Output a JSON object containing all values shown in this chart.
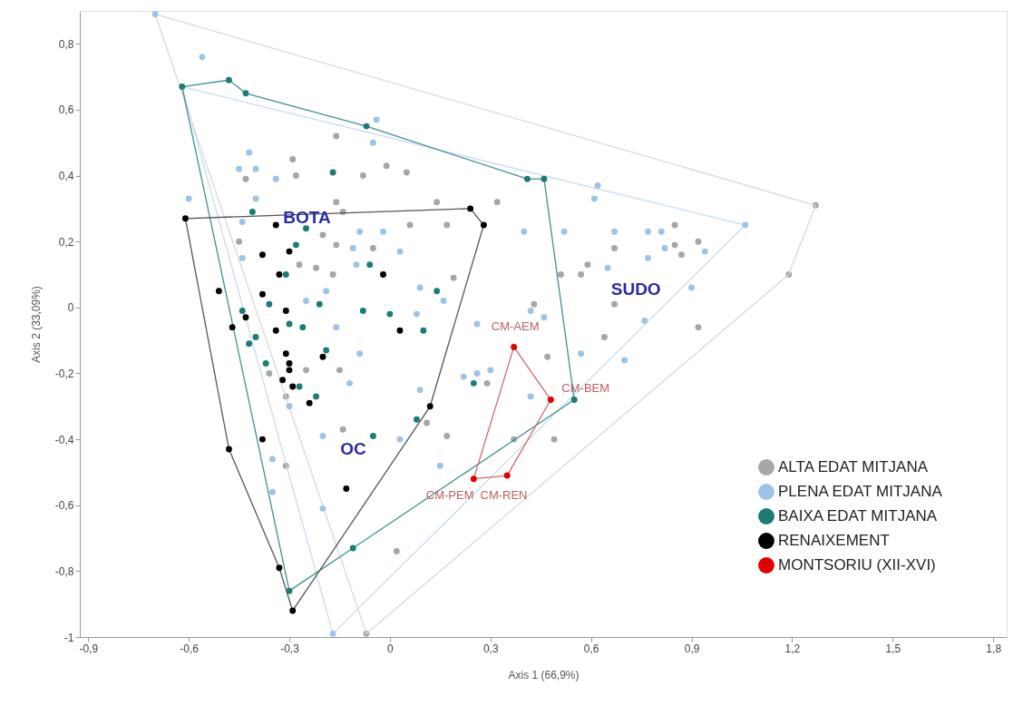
{
  "chart_data": {
    "type": "scatter",
    "xlabel": "Axis 1 (66,9%)",
    "ylabel": "Axis 2 (33,09%)",
    "xlim": [
      -0.925,
      1.84
    ],
    "ylim": [
      -1,
      0.9
    ],
    "xticks": [
      {
        "value": -0.9,
        "label": "-0,9"
      },
      {
        "value": -0.6,
        "label": "-0,6"
      },
      {
        "value": -0.3,
        "label": "-0,3"
      },
      0,
      {
        "value": 0.3,
        "label": "0,3"
      },
      {
        "value": 0.6,
        "label": "0,6"
      },
      {
        "value": 0.9,
        "label": "0,9"
      },
      {
        "value": 1.2,
        "label": "1,2"
      },
      {
        "value": 1.5,
        "label": "1,5"
      },
      {
        "value": 1.8,
        "label": "1,8"
      }
    ],
    "yticks": [
      {
        "value": 0.8,
        "label": "0,8"
      },
      {
        "value": 0.6,
        "label": "0,6"
      },
      {
        "value": 0.4,
        "label": "0,4"
      },
      {
        "value": 0.2,
        "label": "0,2"
      },
      0,
      {
        "value": -0.2,
        "label": "-0,2"
      },
      {
        "value": -0.4,
        "label": "-0,4"
      },
      {
        "value": -0.6,
        "label": "-0,6"
      },
      {
        "value": -0.8,
        "label": "-0,8"
      },
      -1
    ],
    "grid": false,
    "legend": "bottom right",
    "marker": "circle",
    "series": [
      {
        "type": "line",
        "marker": "none",
        "color": "#d9d9d9",
        "x": [
          -0.7,
          1.27
        ],
        "values": [
          0.89,
          0.31
        ]
      },
      {
        "type": "line",
        "marker": "none",
        "color": "#d9d9d9",
        "x": [
          1.19,
          1.27
        ],
        "values": [
          0.1,
          0.31
        ]
      },
      {
        "type": "line",
        "marker": "none",
        "color": "#d9d9d9",
        "x": [
          -0.07,
          1.19
        ],
        "values": [
          -0.99,
          0.1
        ]
      },
      {
        "type": "line",
        "marker": "none",
        "color": "#d9d9d9",
        "x": [
          -0.7,
          -0.07
        ],
        "values": [
          0.89,
          -0.99
        ]
      },
      {
        "type": "line",
        "marker": "none",
        "color": "#c9dcef",
        "x": [
          -0.62,
          1.06
        ],
        "values": [
          0.67,
          0.25
        ]
      },
      {
        "type": "line",
        "marker": "none",
        "color": "#c9dcef",
        "x": [
          -0.17,
          1.06
        ],
        "values": [
          -0.99,
          0.25
        ]
      },
      {
        "type": "line",
        "marker": "none",
        "color": "#c9dcef",
        "x": [
          -0.62,
          -0.17
        ],
        "values": [
          0.67,
          -0.99
        ]
      },
      {
        "type": "line",
        "marker": "none",
        "color": "#3f9090",
        "x": [
          -0.62,
          -0.48
        ],
        "values": [
          0.67,
          0.69
        ]
      },
      {
        "type": "line",
        "marker": "none",
        "color": "#3f9090",
        "x": [
          -0.48,
          -0.43
        ],
        "values": [
          0.69,
          0.65
        ]
      },
      {
        "type": "line",
        "marker": "none",
        "color": "#3f9090",
        "x": [
          -0.43,
          -0.07
        ],
        "values": [
          0.65,
          0.55
        ]
      },
      {
        "type": "line",
        "marker": "none",
        "color": "#3f9090",
        "x": [
          -0.07,
          0.41
        ],
        "values": [
          0.55,
          0.39
        ]
      },
      {
        "type": "line",
        "marker": "none",
        "color": "#3f9090",
        "x": [
          0.41,
          0.46
        ],
        "values": [
          0.39,
          0.39
        ]
      },
      {
        "type": "line",
        "marker": "none",
        "color": "#3f9090",
        "x": [
          0.46,
          0.55
        ],
        "values": [
          0.39,
          -0.28
        ]
      },
      {
        "type": "line",
        "marker": "none",
        "color": "#3f9090",
        "x": [
          -0.11,
          0.55
        ],
        "values": [
          -0.73,
          -0.28
        ]
      },
      {
        "type": "line",
        "marker": "none",
        "color": "#3f9090",
        "x": [
          -0.3,
          -0.11
        ],
        "values": [
          -0.86,
          -0.73
        ]
      },
      {
        "type": "line",
        "marker": "none",
        "color": "#3f9090",
        "x": [
          -0.62,
          -0.3
        ],
        "values": [
          0.67,
          -0.86
        ]
      },
      {
        "type": "line",
        "marker": "none",
        "color": "#555555",
        "x": [
          -0.61,
          0.24
        ],
        "values": [
          0.27,
          0.3
        ]
      },
      {
        "type": "line",
        "marker": "none",
        "color": "#555555",
        "x": [
          0.24,
          0.28
        ],
        "values": [
          0.3,
          0.25
        ]
      },
      {
        "type": "line",
        "marker": "none",
        "color": "#555555",
        "x": [
          0.12,
          0.28
        ],
        "values": [
          -0.3,
          0.25
        ]
      },
      {
        "type": "line",
        "marker": "none",
        "color": "#555555",
        "x": [
          -0.29,
          0.12
        ],
        "values": [
          -0.92,
          -0.3
        ]
      },
      {
        "type": "line",
        "marker": "none",
        "color": "#555555",
        "x": [
          -0.33,
          -0.29
        ],
        "values": [
          -0.79,
          -0.92
        ]
      },
      {
        "type": "line",
        "marker": "none",
        "color": "#555555",
        "x": [
          -0.48,
          -0.33
        ],
        "values": [
          -0.43,
          -0.79
        ]
      },
      {
        "type": "line",
        "marker": "none",
        "color": "#555555",
        "x": [
          -0.61,
          -0.48
        ],
        "values": [
          0.27,
          -0.43
        ]
      },
      {
        "type": "line",
        "marker": "none",
        "color": "#d06a6a",
        "x": [
          0.37,
          0.48
        ],
        "values": [
          -0.12,
          -0.28
        ]
      },
      {
        "type": "line",
        "marker": "none",
        "color": "#d06a6a",
        "x": [
          0.35,
          0.48
        ],
        "values": [
          -0.51,
          -0.28
        ]
      },
      {
        "type": "line",
        "marker": "none",
        "color": "#d06a6a",
        "x": [
          0.25,
          0.35
        ],
        "values": [
          -0.52,
          -0.51
        ]
      },
      {
        "type": "line",
        "marker": "none",
        "color": "#d06a6a",
        "x": [
          0.25,
          0.37
        ],
        "values": [
          -0.52,
          -0.12
        ]
      },
      {
        "name": "ALTA EDAT MITJANA",
        "color": "#a6a6a6",
        "x": [
          -0.16,
          -0.29,
          -0.28,
          -0.08,
          -0.01,
          0.05,
          -0.43,
          -0.16,
          0.14,
          -0.14,
          0.06,
          0.17,
          -0.45,
          -0.2,
          -0.16,
          -0.05,
          -0.27,
          -0.17,
          0.19,
          -0.22,
          -0.25,
          -0.15,
          -0.36,
          -0.31,
          -0.14,
          0.11,
          0.17,
          -0.31,
          0.02,
          -0.07,
          0.32,
          0.67,
          0.85,
          0.85,
          0.87,
          0.92,
          0.59,
          0.57,
          0.67,
          0.64,
          0.92,
          0.47,
          1.19,
          1.27,
          0.37,
          0.49,
          0.29,
          0.43,
          0.51
        ],
        "values": [
          0.52,
          0.45,
          0.4,
          0.4,
          0.43,
          0.41,
          0.39,
          0.32,
          0.32,
          0.29,
          0.25,
          0.25,
          0.2,
          0.22,
          0.19,
          0.18,
          0.13,
          0.1,
          0.09,
          0.12,
          -0.19,
          -0.19,
          -0.2,
          -0.27,
          -0.37,
          -0.35,
          -0.39,
          -0.48,
          -0.74,
          -0.99,
          0.32,
          0.18,
          0.25,
          0.19,
          0.16,
          0.2,
          0.13,
          0.1,
          0.01,
          -0.09,
          -0.06,
          -0.15,
          0.1,
          0.31,
          -0.4,
          -0.4,
          -0.23,
          0.01,
          0.1
        ]
      },
      {
        "name": "PLENA EDAT MITJANA",
        "color": "#9dc3e6",
        "x": [
          -0.56,
          -0.7,
          -0.04,
          -0.05,
          -0.42,
          -0.45,
          -0.4,
          -0.34,
          -0.4,
          -0.6,
          -0.44,
          -0.09,
          -0.02,
          0.03,
          -0.11,
          -0.44,
          -0.1,
          0.09,
          0.16,
          -0.19,
          -0.25,
          0.08,
          -0.16,
          -0.09,
          -0.12,
          -0.3,
          0.09,
          0.03,
          -0.2,
          -0.35,
          -0.35,
          -0.2,
          0.15,
          0.26,
          0.3,
          -0.17,
          0.62,
          0.61,
          0.4,
          0.52,
          0.67,
          0.77,
          0.81,
          0.82,
          0.77,
          0.65,
          0.94,
          1.06,
          0.9,
          0.76,
          0.7,
          0.57,
          0.42,
          0.46,
          0.26,
          0.42,
          0.22
        ],
        "values": [
          0.76,
          0.89,
          0.57,
          0.5,
          0.47,
          0.42,
          0.42,
          0.39,
          0.33,
          0.33,
          0.26,
          0.23,
          0.23,
          0.17,
          0.18,
          0.15,
          0.13,
          0.06,
          0.02,
          0.05,
          0.02,
          -0.02,
          -0.06,
          -0.14,
          -0.23,
          -0.3,
          -0.25,
          -0.4,
          -0.39,
          -0.46,
          -0.56,
          -0.61,
          -0.48,
          -0.05,
          -0.19,
          -0.99,
          0.37,
          0.33,
          0.23,
          0.23,
          0.23,
          0.23,
          0.23,
          0.18,
          0.15,
          0.12,
          0.17,
          0.25,
          0.06,
          -0.04,
          -0.16,
          -0.14,
          -0.01,
          -0.03,
          -0.2,
          -0.27,
          -0.21
        ]
      },
      {
        "name": "BAIXA EDAT MITJANA",
        "color": "#1c7c74",
        "x": [
          -0.62,
          -0.48,
          -0.43,
          -0.07,
          0.41,
          0.46,
          0.55,
          -0.11,
          -0.3,
          -0.17,
          -0.41,
          -0.25,
          -0.28,
          -0.06,
          -0.31,
          0.14,
          -0.08,
          0.0,
          -0.21,
          -0.36,
          -0.44,
          -0.3,
          -0.26,
          -0.4,
          -0.42,
          -0.37,
          -0.19,
          -0.27,
          -0.22,
          -0.05,
          0.08,
          0.1,
          0.25
        ],
        "values": [
          0.67,
          0.69,
          0.65,
          0.55,
          0.39,
          0.39,
          -0.28,
          -0.73,
          -0.86,
          0.41,
          0.29,
          0.24,
          0.19,
          0.13,
          0.1,
          0.05,
          -0.01,
          -0.02,
          0.01,
          0.01,
          -0.01,
          -0.05,
          -0.06,
          -0.09,
          -0.11,
          -0.17,
          -0.13,
          -0.24,
          -0.27,
          -0.39,
          -0.34,
          -0.07,
          -0.23
        ]
      },
      {
        "name": "RENAIXEMENT",
        "color": "#000000",
        "x": [
          -0.61,
          0.24,
          0.28,
          0.12,
          -0.29,
          -0.33,
          -0.48,
          -0.34,
          -0.3,
          -0.38,
          -0.33,
          -0.02,
          -0.51,
          -0.38,
          -0.31,
          -0.43,
          -0.47,
          -0.34,
          0.03,
          -0.31,
          -0.3,
          -0.3,
          -0.2,
          -0.32,
          -0.29,
          -0.24,
          -0.38,
          -0.13
        ],
        "values": [
          0.27,
          0.3,
          0.25,
          -0.3,
          -0.92,
          -0.79,
          -0.43,
          0.25,
          0.17,
          0.16,
          0.1,
          0.1,
          0.05,
          0.04,
          -0.01,
          -0.03,
          -0.06,
          -0.07,
          -0.07,
          -0.14,
          -0.17,
          -0.19,
          -0.15,
          -0.22,
          -0.24,
          -0.29,
          -0.4,
          -0.55
        ]
      },
      {
        "name": "MONTSORIU (XII-XVI)",
        "color": "#e00000",
        "x": [
          0.37,
          0.48,
          0.35,
          0.25
        ],
        "values": [
          -0.12,
          -0.28,
          -0.51,
          -0.52
        ]
      }
    ],
    "annotations": [
      "BOTA",
      "SUDO",
      "OC",
      {
        "text": "CM-AEM",
        "x": 0.37,
        "y": -0.12
      },
      {
        "text": "CM-BEM",
        "x": 0.48,
        "y": -0.28
      },
      {
        "text": "CM-REN",
        "x": 0.35,
        "y": -0.51
      },
      {
        "text": "CM-PEM",
        "x": 0.25,
        "y": -0.52
      }
    ]
  }
}
